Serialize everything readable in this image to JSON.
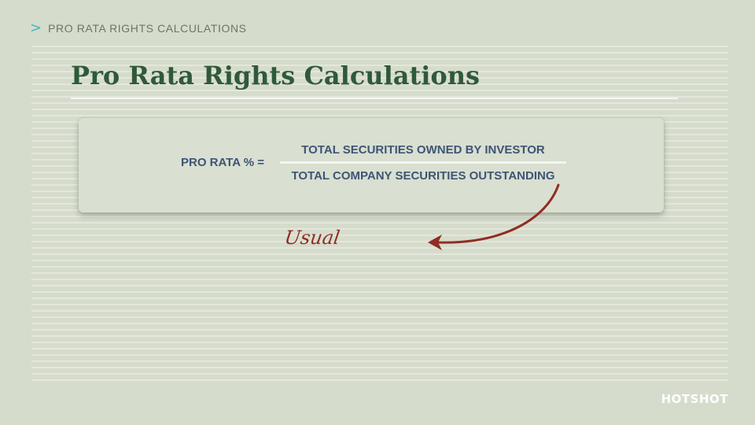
{
  "breadcrumb": {
    "icon": "chevron-right-icon",
    "text": "PRO RATA RIGHTS CALCULATIONS"
  },
  "title": "Pro Rata Rights Calculations",
  "formula": {
    "lhs": "PRO RATA % =",
    "numerator": "TOTAL SECURITIES OWNED BY INVESTOR",
    "denominator": "TOTAL COMPANY SECURITIES OUTSTANDING"
  },
  "annotation": {
    "text": "Usual",
    "icon": "curved-arrow-icon"
  },
  "logo": "HOTSHOT",
  "colors": {
    "background": "#d6dccc",
    "title": "#2f5a3a",
    "formula_text": "#3d5575",
    "accent_chevron": "#4bb3c4",
    "annotation": "#8f2d24"
  }
}
